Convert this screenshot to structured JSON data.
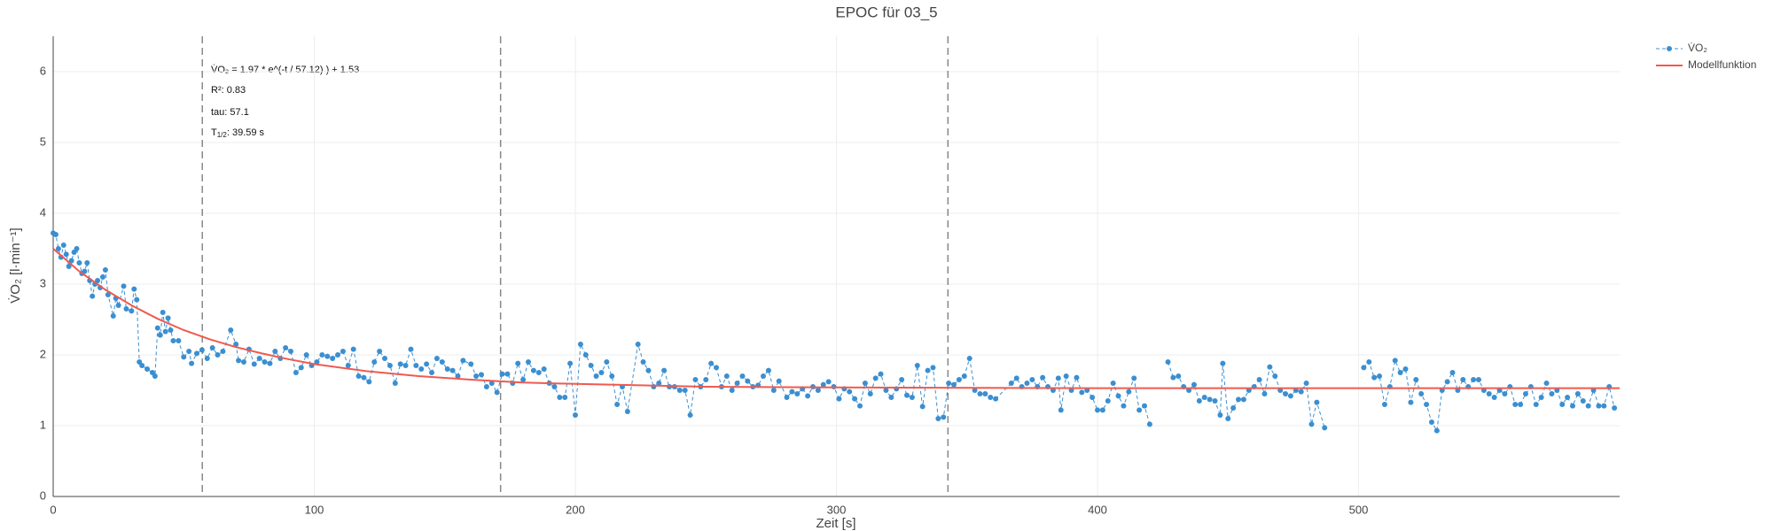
{
  "chart_data": {
    "type": "scatter-line",
    "title": "EPOC für 03_5",
    "x_label": "Zeit [s]",
    "y_label": "V̇O₂ [l·min⁻¹]",
    "xlim": [
      0,
      600
    ],
    "ylim": [
      0,
      6.5
    ],
    "xticks": [
      0,
      100,
      200,
      300,
      400,
      500
    ],
    "yticks": [
      0,
      1,
      2,
      3,
      4,
      5,
      6
    ],
    "grid": true,
    "legend": "top-right",
    "vertical_lines": [
      57.12,
      171.36,
      342.72
    ],
    "annotations": [
      "V̇O₂ = 1.97 * e^(-t / 57.12) ) + 1.53",
      "R²: 0.83",
      "tau: 57.1"
    ],
    "half_life": {
      "main": "T",
      "sub": "1/2",
      "rest": ": 39.59 s"
    },
    "series": [
      {
        "name": "V̇O₂",
        "color": "#3a8fd1",
        "style": "markers+dashed",
        "x": [
          0,
          1,
          2,
          3,
          4,
          5,
          6,
          7,
          8,
          9,
          10,
          11,
          12,
          13,
          14,
          15,
          16,
          17,
          18,
          19,
          20,
          21,
          23,
          24,
          25,
          27,
          28,
          30,
          31,
          32,
          33,
          34,
          36,
          38,
          39,
          40,
          41,
          42,
          43,
          44,
          45,
          46,
          48,
          50,
          52,
          53,
          55,
          57,
          59,
          61,
          63,
          65,
          68,
          70,
          71,
          73,
          75,
          77,
          79,
          81,
          83,
          85,
          87,
          89,
          91,
          93,
          95,
          97,
          99,
          101,
          103,
          105,
          107,
          109,
          111,
          113,
          115,
          117,
          119,
          121,
          123,
          125,
          127,
          129,
          131,
          133,
          135,
          137,
          139,
          141,
          143,
          145,
          147,
          149,
          151,
          153,
          155,
          157,
          160,
          162,
          164,
          166,
          168,
          170,
          172,
          174,
          176,
          178,
          180,
          182,
          184,
          186,
          188,
          190,
          192,
          194,
          196,
          198,
          200,
          202,
          204,
          206,
          208,
          210,
          212,
          214,
          216,
          218,
          220,
          224,
          226,
          228,
          230,
          232,
          234,
          236,
          238,
          240,
          242,
          244,
          246,
          248,
          250,
          252,
          254,
          256,
          258,
          260,
          262,
          264,
          266,
          268,
          270,
          272,
          274,
          276,
          278,
          281,
          283,
          285,
          287,
          289,
          291,
          293,
          295,
          297,
          299,
          301,
          303,
          305,
          307,
          309,
          311,
          313,
          315,
          317,
          319,
          321,
          323,
          325,
          327,
          329,
          331,
          333,
          335,
          337,
          339,
          341,
          343,
          345,
          347,
          349,
          351,
          353,
          355,
          357,
          359,
          361,
          367,
          369,
          371,
          373,
          375,
          377,
          379,
          381,
          383,
          385,
          386,
          388,
          390,
          392,
          394,
          396,
          398,
          400,
          402,
          404,
          406,
          408,
          410,
          412,
          414,
          416,
          418,
          420,
          424,
          427,
          429,
          431,
          433,
          435,
          437,
          439,
          441,
          443,
          445,
          447,
          448,
          450,
          452,
          454,
          456,
          458,
          460,
          462,
          464,
          466,
          468,
          470,
          472,
          474,
          476,
          478,
          480,
          482,
          484,
          487,
          495,
          502,
          504,
          506,
          508,
          510,
          512,
          514,
          516,
          518,
          520,
          522,
          524,
          526,
          528,
          530,
          532,
          534,
          536,
          538,
          540,
          542,
          544,
          546,
          548,
          550,
          552,
          554,
          556,
          558,
          560,
          562,
          564,
          566,
          568,
          570,
          572,
          574,
          576,
          578,
          580,
          582,
          584,
          586,
          588,
          590,
          592,
          594,
          596,
          598
        ],
        "values": [
          3.72,
          3.7,
          3.5,
          3.38,
          3.55,
          3.42,
          3.25,
          3.33,
          3.45,
          3.5,
          3.3,
          3.15,
          3.18,
          3.3,
          3.05,
          2.83,
          3.0,
          3.05,
          2.95,
          3.1,
          3.2,
          2.85,
          2.55,
          2.8,
          2.7,
          2.97,
          2.65,
          2.62,
          2.93,
          2.78,
          1.9,
          1.85,
          1.8,
          1.75,
          1.7,
          2.38,
          2.28,
          2.6,
          2.33,
          2.52,
          2.35,
          2.2,
          2.2,
          1.97,
          2.05,
          1.88,
          2.02,
          2.07,
          1.95,
          2.1,
          2.0,
          2.05,
          2.35,
          2.15,
          1.92,
          1.9,
          2.08,
          1.87,
          1.95,
          1.9,
          1.88,
          2.05,
          1.95,
          2.1,
          2.05,
          1.75,
          1.82,
          2.0,
          1.85,
          1.9,
          2.0,
          1.98,
          1.95,
          2.0,
          2.05,
          1.85,
          2.08,
          1.7,
          1.68,
          1.62,
          1.9,
          2.05,
          1.95,
          1.85,
          1.6,
          1.87,
          1.85,
          2.08,
          1.85,
          1.8,
          1.87,
          1.75,
          1.95,
          1.9,
          1.8,
          1.78,
          1.7,
          1.92,
          1.87,
          1.7,
          1.72,
          1.55,
          1.6,
          1.47,
          1.73,
          1.73,
          1.6,
          1.88,
          1.65,
          1.9,
          1.78,
          1.75,
          1.8,
          1.6,
          1.55,
          1.4,
          1.4,
          1.88,
          1.15,
          2.15,
          2.0,
          1.85,
          1.7,
          1.75,
          1.9,
          1.7,
          1.3,
          1.55,
          1.2,
          2.15,
          1.9,
          1.78,
          1.55,
          1.6,
          1.78,
          1.55,
          1.55,
          1.5,
          1.5,
          1.15,
          1.65,
          1.55,
          1.65,
          1.88,
          1.82,
          1.55,
          1.7,
          1.5,
          1.6,
          1.7,
          1.63,
          1.55,
          1.57,
          1.7,
          1.78,
          1.5,
          1.63,
          1.4,
          1.48,
          1.45,
          1.52,
          1.42,
          1.55,
          1.5,
          1.58,
          1.62,
          1.55,
          1.38,
          1.52,
          1.48,
          1.38,
          1.28,
          1.6,
          1.45,
          1.67,
          1.73,
          1.5,
          1.4,
          1.52,
          1.65,
          1.43,
          1.4,
          1.85,
          1.27,
          1.78,
          1.82,
          1.1,
          1.12,
          1.6,
          1.58,
          1.65,
          1.7,
          1.95,
          1.5,
          1.45,
          1.45,
          1.4,
          1.38,
          1.6,
          1.67,
          1.55,
          1.6,
          1.65,
          1.55,
          1.68,
          1.55,
          1.5,
          1.67,
          1.22,
          1.7,
          1.5,
          1.68,
          1.47,
          1.5,
          1.4,
          1.22,
          1.22,
          1.35,
          1.6,
          1.42,
          1.28,
          1.48,
          1.67,
          1.22,
          1.28,
          1.02,
          null,
          1.9,
          1.68,
          1.7,
          1.55,
          1.5,
          1.58,
          1.35,
          1.4,
          1.37,
          1.35,
          1.15,
          1.88,
          1.1,
          1.25,
          1.37,
          1.37,
          1.5,
          1.55,
          1.65,
          1.45,
          1.83,
          1.7,
          1.5,
          1.45,
          1.42,
          1.5,
          1.48,
          1.6,
          1.02,
          1.33,
          0.97,
          null,
          1.82,
          1.9,
          1.68,
          1.7,
          1.3,
          1.55,
          1.92,
          1.75,
          1.8,
          1.33,
          1.65,
          1.45,
          1.3,
          1.05,
          0.93,
          1.5,
          1.62,
          1.75,
          1.5,
          1.65,
          1.55,
          1.65,
          1.65,
          1.5,
          1.45,
          1.4,
          1.5,
          1.45,
          1.55,
          1.3,
          1.3,
          1.45,
          1.55,
          1.3,
          1.4,
          1.6,
          1.45,
          1.5,
          1.3,
          1.4,
          1.28,
          1.45,
          1.35,
          1.28,
          1.5,
          1.28,
          1.28,
          1.55,
          1.25
        ]
      },
      {
        "name": "Modellfunktion",
        "color": "#ef5a4f",
        "style": "line",
        "x": [
          0,
          10,
          20,
          30,
          40,
          50,
          60,
          70,
          80,
          90,
          100,
          120,
          140,
          160,
          180,
          200,
          250,
          300,
          400,
          600
        ],
        "values": [
          3.5,
          3.18,
          2.92,
          2.7,
          2.51,
          2.35,
          2.22,
          2.11,
          2.02,
          1.94,
          1.87,
          1.77,
          1.7,
          1.65,
          1.61,
          1.59,
          1.55,
          1.54,
          1.53,
          1.53
        ]
      }
    ]
  }
}
